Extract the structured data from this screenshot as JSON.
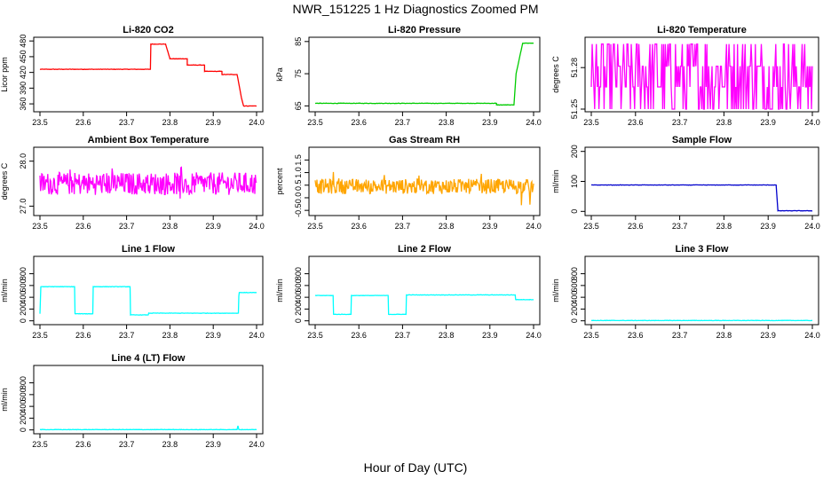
{
  "figure": {
    "title": "NWR_151225  1 Hz Diagnostics Zoomed PM",
    "xlabel": "Hour of Day (UTC)"
  },
  "chart_data": [
    {
      "type": "line",
      "title": "Li-820 CO2",
      "ylabel": "Licor ppm",
      "color": "#ff0000",
      "xlim": [
        23.5,
        24.0
      ],
      "ylim": [
        350,
        482
      ],
      "xticks": [
        "23.5",
        "23.6",
        "23.7",
        "23.8",
        "23.9",
        "24.0"
      ],
      "yticks": [
        "360",
        "390",
        "420",
        "450",
        "480"
      ],
      "series": [
        {
          "x": [
            23.5,
            23.755,
            23.756,
            23.79,
            23.8,
            23.8,
            23.84,
            23.84,
            23.88,
            23.88,
            23.92,
            23.92,
            23.955,
            23.965,
            23.97,
            24.0
          ],
          "y": [
            426,
            426,
            474,
            474,
            446,
            446,
            446,
            434,
            434,
            422,
            422,
            416,
            416,
            372,
            356,
            356
          ]
        }
      ]
    },
    {
      "type": "line",
      "title": "Li-820 Pressure",
      "ylabel": "kPa",
      "color": "#00cc00",
      "xlim": [
        23.5,
        24.0
      ],
      "ylim": [
        64,
        85.5
      ],
      "xticks": [
        "23.5",
        "23.6",
        "23.7",
        "23.8",
        "23.9",
        "24.0"
      ],
      "yticks": [
        "65",
        "75",
        "85"
      ],
      "series": [
        {
          "x": [
            23.5,
            23.915,
            23.915,
            23.955,
            23.96,
            23.975,
            24.0
          ],
          "y": [
            65.8,
            65.8,
            65.3,
            65.3,
            75,
            84.5,
            84.5
          ]
        }
      ]
    },
    {
      "type": "line",
      "title": "Li-820 Temperature",
      "ylabel": "degrees C",
      "color": "#ff00ff",
      "xlim": [
        23.5,
        24.0
      ],
      "ylim": [
        51.25,
        51.3
      ],
      "xticks": [
        "23.5",
        "23.6",
        "23.7",
        "23.8",
        "23.9",
        "24.0"
      ],
      "yticks": [
        "51.25",
        "51.28"
      ],
      "series": [
        {
          "x": [
            23.5,
            24.0
          ],
          "y": [
            51.281,
            51.281
          ],
          "levels": [
            51.25,
            51.266,
            51.281,
            51.297
          ]
        }
      ]
    },
    {
      "type": "line",
      "title": "Ambient Box Temperature",
      "ylabel": "degrees C",
      "color": "#ff00ff",
      "xlim": [
        23.5,
        24.0
      ],
      "ylim": [
        26.85,
        28.25
      ],
      "xticks": [
        "23.5",
        "23.6",
        "23.7",
        "23.8",
        "23.9",
        "24.0"
      ],
      "yticks": [
        "27.0",
        "28.0"
      ],
      "series": [
        {
          "x": [
            23.5,
            24.0
          ],
          "y": [
            27.5,
            27.5
          ],
          "noise": 0.25
        }
      ]
    },
    {
      "type": "line",
      "title": "Gas Stream RH",
      "ylabel": "percent",
      "color": "#ffa500",
      "xlim": [
        23.5,
        24.0
      ],
      "ylim": [
        -0.6,
        1.9
      ],
      "xticks": [
        "23.5",
        "23.6",
        "23.7",
        "23.8",
        "23.9",
        "24.0"
      ],
      "yticks": [
        "-0.5",
        "0.0",
        "0.5",
        "1.0",
        "1.5"
      ],
      "series": [
        {
          "x": [
            23.5,
            24.0
          ],
          "y": [
            0.45,
            0.45
          ],
          "noise": 0.3
        }
      ]
    },
    {
      "type": "line",
      "title": "Sample Flow",
      "ylabel": "ml/min",
      "color": "#0000cc",
      "xlim": [
        23.5,
        24.0
      ],
      "ylim": [
        -5,
        205
      ],
      "xticks": [
        "23.5",
        "23.6",
        "23.7",
        "23.8",
        "23.9",
        "24.0"
      ],
      "yticks": [
        "0",
        "100",
        "200"
      ],
      "series": [
        {
          "x": [
            23.5,
            23.918,
            23.922,
            24.0
          ],
          "y": [
            88,
            88,
            2,
            2
          ]
        }
      ]
    },
    {
      "type": "line",
      "title": "Line 1 Flow",
      "ylabel": "ml/min",
      "color": "#00ffff",
      "xlim": [
        23.5,
        24.0
      ],
      "ylim": [
        -20,
        1050
      ],
      "xticks": [
        "23.5",
        "23.6",
        "23.7",
        "23.8",
        "23.9",
        "24.0"
      ],
      "yticks": [
        "0",
        "200",
        "400",
        "600",
        "800"
      ],
      "series": [
        {
          "x": [
            23.5,
            23.502,
            23.58,
            23.581,
            23.622,
            23.623,
            23.708,
            23.709,
            23.75,
            23.751,
            23.958,
            23.959,
            23.96,
            24.0
          ],
          "y": [
            120,
            580,
            580,
            120,
            120,
            580,
            580,
            100,
            100,
            130,
            130,
            420,
            480,
            480
          ]
        }
      ]
    },
    {
      "type": "line",
      "title": "Line 2 Flow",
      "ylabel": "ml/min",
      "color": "#00ffff",
      "xlim": [
        23.5,
        24.0
      ],
      "ylim": [
        -20,
        1050
      ],
      "xticks": [
        "23.5",
        "23.6",
        "23.7",
        "23.8",
        "23.9",
        "24.0"
      ],
      "yticks": [
        "0",
        "200",
        "400",
        "600",
        "800"
      ],
      "series": [
        {
          "x": [
            23.5,
            23.541,
            23.542,
            23.582,
            23.583,
            23.667,
            23.668,
            23.708,
            23.709,
            23.958,
            23.959,
            24.0
          ],
          "y": [
            430,
            430,
            110,
            110,
            430,
            430,
            110,
            110,
            440,
            440,
            360,
            360
          ]
        }
      ]
    },
    {
      "type": "line",
      "title": "Line 3 Flow",
      "ylabel": "ml/min",
      "color": "#00ffff",
      "xlim": [
        23.5,
        24.0
      ],
      "ylim": [
        -20,
        1050
      ],
      "xticks": [
        "23.5",
        "23.6",
        "23.7",
        "23.8",
        "23.9",
        "24.0"
      ],
      "yticks": [
        "0",
        "200",
        "400",
        "600",
        "800"
      ],
      "series": [
        {
          "x": [
            23.5,
            24.0
          ],
          "y": [
            5,
            5
          ]
        }
      ]
    },
    {
      "type": "line",
      "title": "Line 4 (LT) Flow",
      "ylabel": "ml/min",
      "color": "#00ffff",
      "xlim": [
        23.5,
        24.0
      ],
      "ylim": [
        -20,
        1050
      ],
      "xticks": [
        "23.5",
        "23.6",
        "23.7",
        "23.8",
        "23.9",
        "24.0"
      ],
      "yticks": [
        "0",
        "200",
        "400",
        "600",
        "800"
      ],
      "series": [
        {
          "x": [
            23.5,
            23.955,
            23.957,
            23.959,
            24.0
          ],
          "y": [
            5,
            5,
            70,
            5,
            5
          ]
        }
      ]
    }
  ]
}
